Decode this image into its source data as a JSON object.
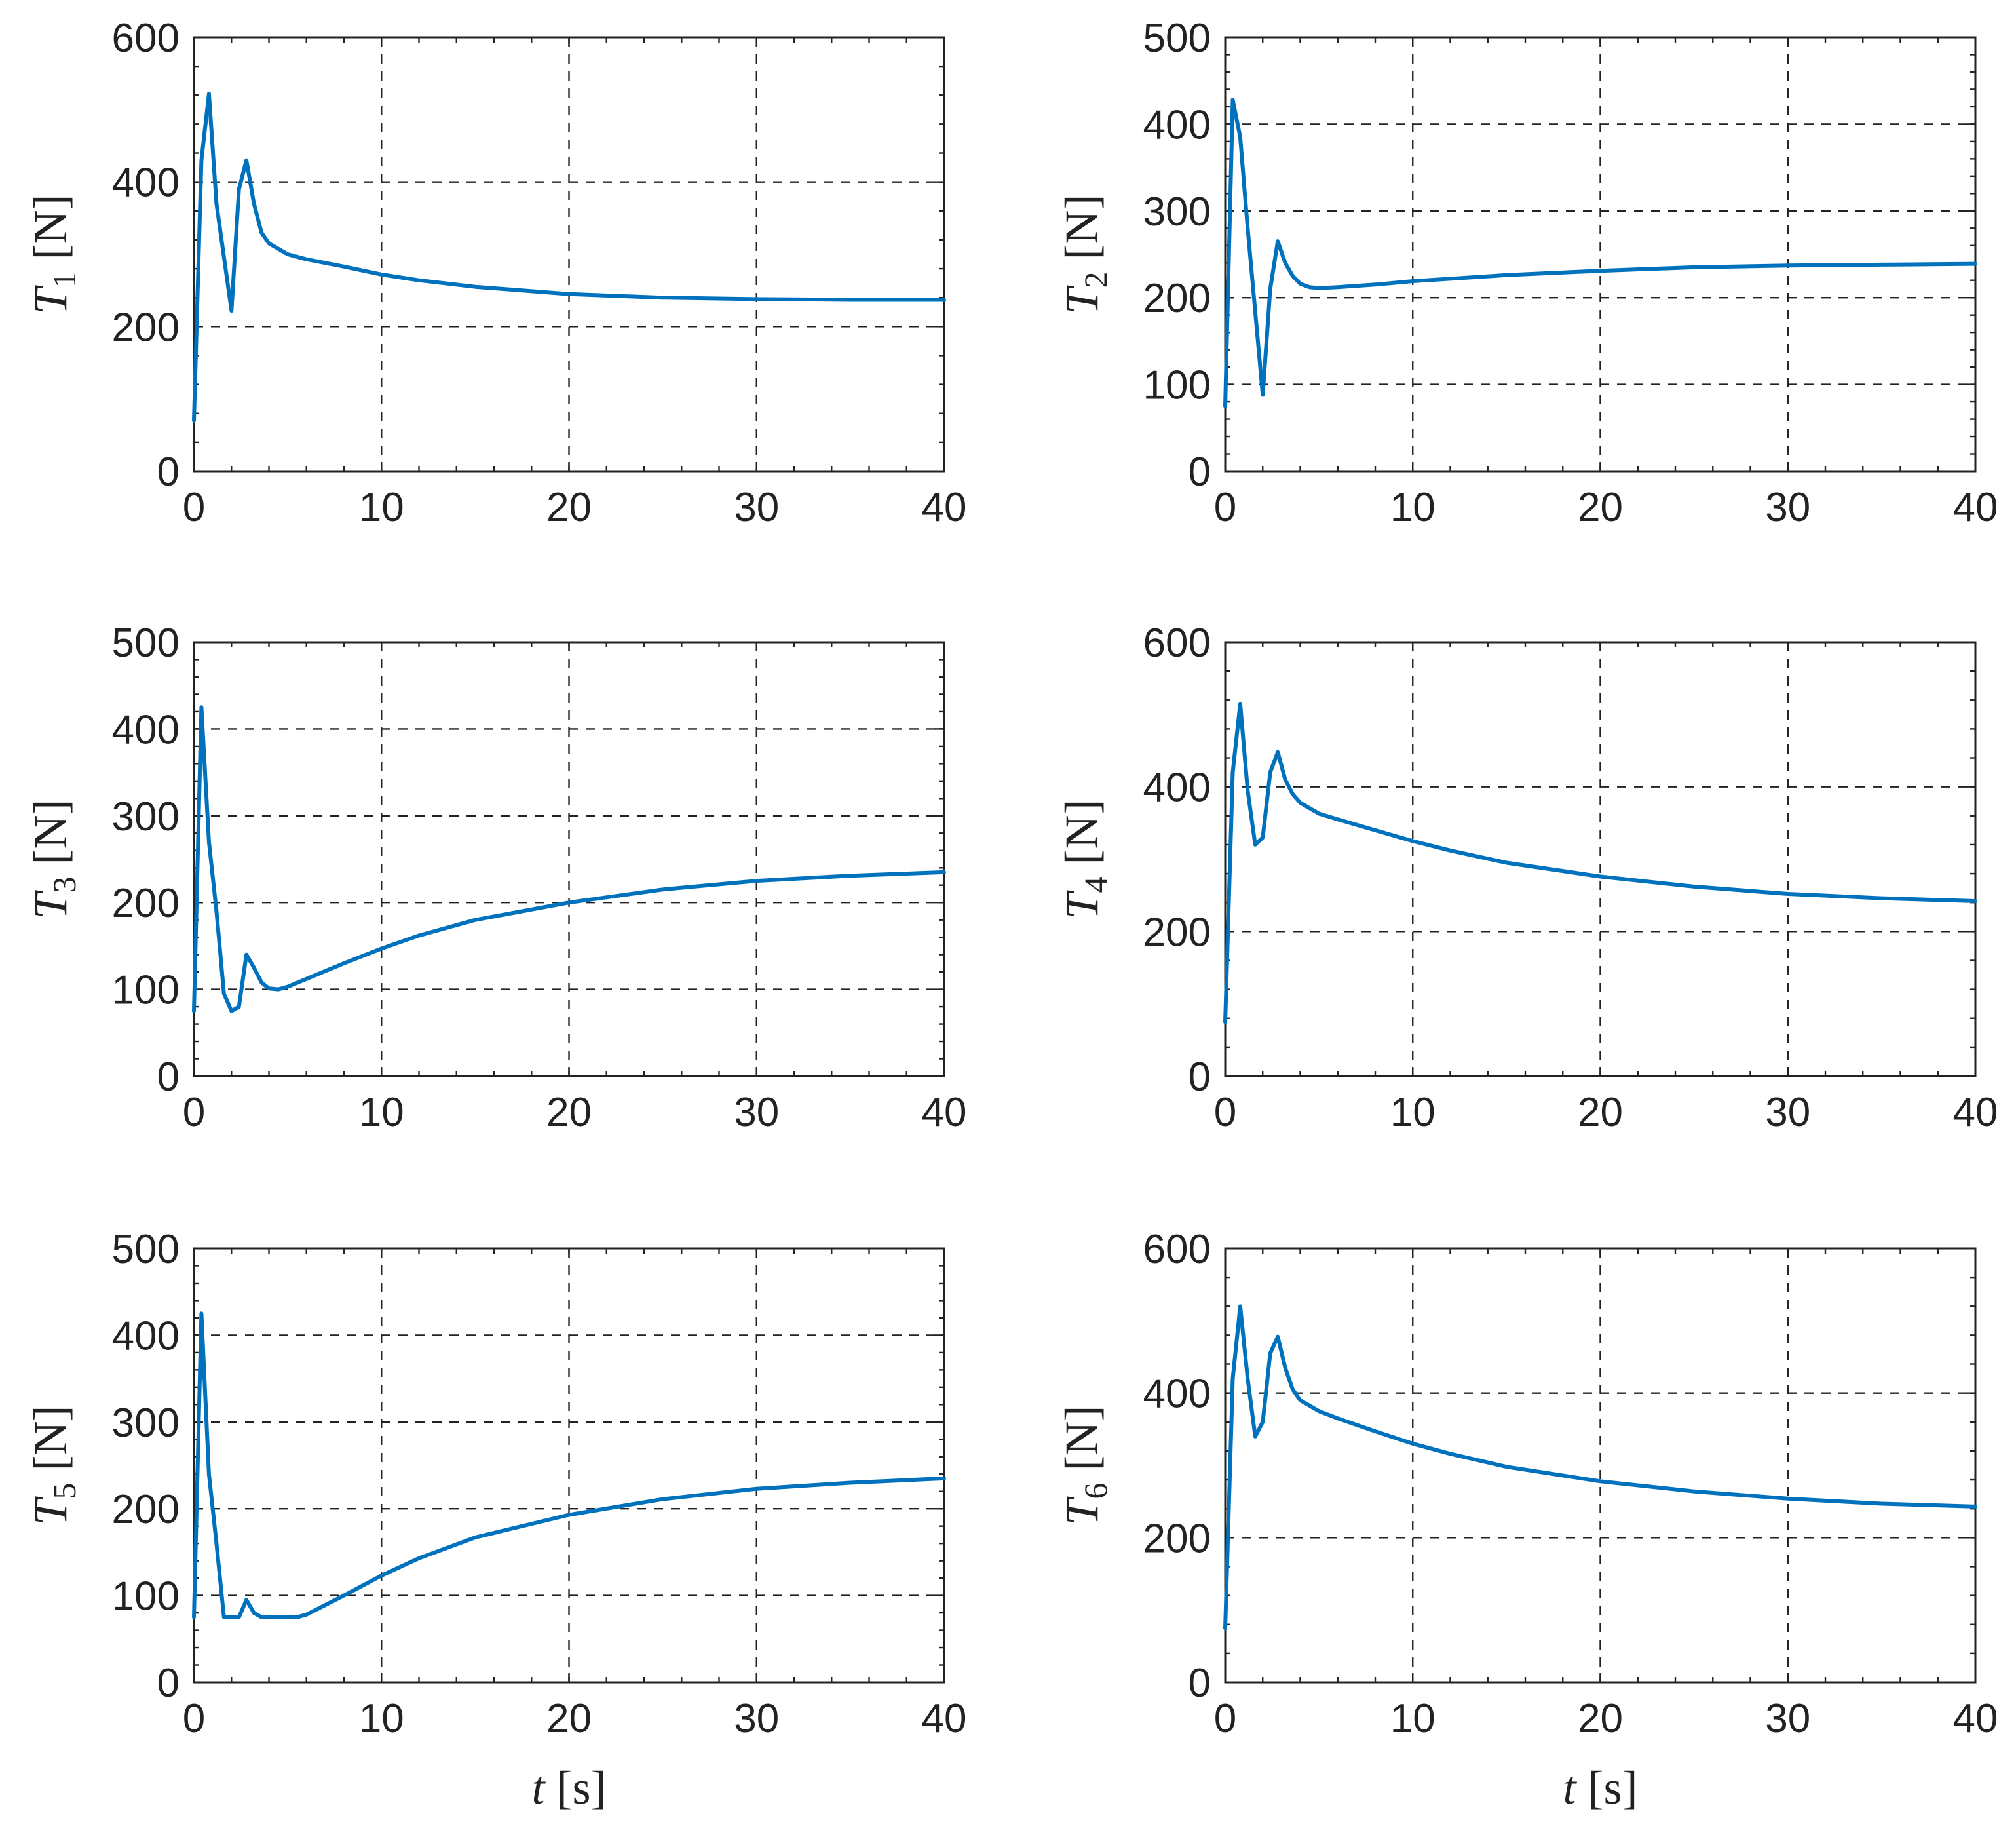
{
  "colors": {
    "series": "#0072BD",
    "axes": "#222222"
  },
  "chart_data": [
    {
      "type": "line",
      "name": "T1",
      "ylabel": {
        "var": "T",
        "sub": "1",
        "unit": "[N]"
      },
      "xlabel": null,
      "xlim": [
        0,
        40
      ],
      "ylim": [
        0,
        600
      ],
      "xticks": [
        0,
        10,
        20,
        30,
        40
      ],
      "yticks": [
        0,
        200,
        400,
        600
      ],
      "grid": true,
      "series": [
        {
          "name": "T1",
          "x": [
            0,
            0.4,
            0.8,
            1.2,
            2.0,
            2.4,
            2.8,
            3.2,
            3.6,
            4.0,
            5,
            6,
            8,
            10,
            12,
            15,
            20,
            25,
            30,
            35,
            40
          ],
          "y": [
            70,
            430,
            522,
            370,
            222,
            390,
            430,
            370,
            330,
            315,
            300,
            293,
            283,
            272,
            264,
            255,
            245,
            240,
            238,
            237,
            237
          ]
        }
      ]
    },
    {
      "type": "line",
      "name": "T2",
      "ylabel": {
        "var": "T",
        "sub": "2",
        "unit": "[N]"
      },
      "xlabel": null,
      "xlim": [
        0,
        40
      ],
      "ylim": [
        0,
        500
      ],
      "xticks": [
        0,
        10,
        20,
        30,
        40
      ],
      "yticks": [
        0,
        100,
        200,
        300,
        400,
        500
      ],
      "grid": true,
      "series": [
        {
          "name": "T2",
          "x": [
            0,
            0.4,
            0.8,
            1.2,
            2.0,
            2.4,
            2.8,
            3.2,
            3.6,
            4.0,
            4.5,
            5,
            6,
            8,
            10,
            15,
            20,
            25,
            30,
            35,
            40
          ],
          "y": [
            75,
            428,
            385,
            280,
            88,
            210,
            265,
            240,
            225,
            216,
            212,
            211,
            212,
            215,
            219,
            226,
            231,
            235,
            237,
            238,
            239
          ]
        }
      ]
    },
    {
      "type": "line",
      "name": "T3",
      "ylabel": {
        "var": "T",
        "sub": "3",
        "unit": "[N]"
      },
      "xlabel": null,
      "xlim": [
        0,
        40
      ],
      "ylim": [
        0,
        500
      ],
      "xticks": [
        0,
        10,
        20,
        30,
        40
      ],
      "yticks": [
        0,
        100,
        200,
        300,
        400,
        500
      ],
      "grid": true,
      "series": [
        {
          "name": "T3",
          "x": [
            0,
            0.4,
            0.8,
            1.2,
            1.6,
            2.0,
            2.4,
            2.8,
            3.2,
            3.6,
            4.0,
            4.5,
            5,
            6,
            8,
            10,
            12,
            15,
            20,
            25,
            30,
            35,
            40
          ],
          "y": [
            75,
            425,
            270,
            190,
            95,
            75,
            80,
            140,
            125,
            108,
            101,
            100,
            103,
            112,
            130,
            147,
            162,
            180,
            200,
            215,
            225,
            231,
            235
          ]
        }
      ]
    },
    {
      "type": "line",
      "name": "T4",
      "ylabel": {
        "var": "T",
        "sub": "4",
        "unit": "[N]"
      },
      "xlabel": null,
      "xlim": [
        0,
        40
      ],
      "ylim": [
        0,
        600
      ],
      "xticks": [
        0,
        10,
        20,
        30,
        40
      ],
      "yticks": [
        0,
        200,
        400,
        600
      ],
      "grid": true,
      "series": [
        {
          "name": "T4",
          "x": [
            0,
            0.4,
            0.8,
            1.2,
            1.6,
            2.0,
            2.4,
            2.8,
            3.2,
            3.6,
            4.0,
            5,
            6,
            8,
            10,
            12,
            15,
            20,
            25,
            30,
            35,
            40
          ],
          "y": [
            75,
            420,
            515,
            395,
            320,
            330,
            420,
            448,
            410,
            390,
            378,
            363,
            355,
            340,
            325,
            312,
            295,
            276,
            262,
            252,
            246,
            242
          ]
        }
      ]
    },
    {
      "type": "line",
      "name": "T5",
      "ylabel": {
        "var": "T",
        "sub": "5",
        "unit": "[N]"
      },
      "xlabel": {
        "var": "t",
        "unit": "[s]"
      },
      "xlim": [
        0,
        40
      ],
      "ylim": [
        0,
        500
      ],
      "xticks": [
        0,
        10,
        20,
        30,
        40
      ],
      "yticks": [
        0,
        100,
        200,
        300,
        400,
        500
      ],
      "grid": true,
      "series": [
        {
          "name": "T5",
          "x": [
            0,
            0.4,
            0.8,
            1.2,
            1.6,
            2.0,
            2.4,
            2.8,
            3.2,
            3.6,
            4.0,
            4.5,
            5,
            5.5,
            6,
            8,
            10,
            12,
            15,
            20,
            25,
            30,
            35,
            40
          ],
          "y": [
            75,
            425,
            240,
            160,
            75,
            75,
            75,
            95,
            80,
            75,
            75,
            75,
            75,
            75,
            78,
            100,
            123,
            143,
            167,
            193,
            211,
            223,
            230,
            235
          ]
        }
      ]
    },
    {
      "type": "line",
      "name": "T6",
      "ylabel": {
        "var": "T",
        "sub": "6",
        "unit": "[N]"
      },
      "xlabel": {
        "var": "t",
        "unit": "[s]"
      },
      "xlim": [
        0,
        40
      ],
      "ylim": [
        0,
        600
      ],
      "xticks": [
        0,
        10,
        20,
        30,
        40
      ],
      "yticks": [
        0,
        200,
        400,
        600
      ],
      "grid": true,
      "series": [
        {
          "name": "T6",
          "x": [
            0,
            0.4,
            0.8,
            1.2,
            1.6,
            2.0,
            2.4,
            2.8,
            3.2,
            3.6,
            4.0,
            5,
            6,
            8,
            10,
            12,
            15,
            20,
            25,
            30,
            35,
            40
          ],
          "y": [
            75,
            420,
            520,
            420,
            340,
            360,
            455,
            478,
            435,
            405,
            390,
            375,
            365,
            347,
            330,
            316,
            298,
            278,
            264,
            254,
            247,
            243
          ]
        }
      ]
    }
  ]
}
